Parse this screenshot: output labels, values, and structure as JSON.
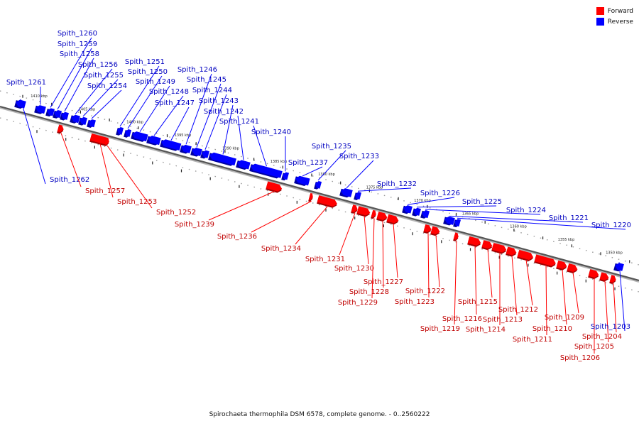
{
  "legend": {
    "forward": {
      "label": "Forward",
      "color": "#ff0000"
    },
    "reverse": {
      "label": "Reverse",
      "color": "#0000ff"
    }
  },
  "caption": "Spirochaeta thermophila DSM 6578, complete genome. - 0..2560222",
  "scale": {
    "ticks": [
      {
        "label": "1410 kbp",
        "pos": 1410
      },
      {
        "label": "1405 kbp",
        "pos": 1405
      },
      {
        "label": "1400 kbp",
        "pos": 1400
      },
      {
        "label": "1395 kbp",
        "pos": 1395
      },
      {
        "label": "1390 kbp",
        "pos": 1390
      },
      {
        "label": "1385 kbp",
        "pos": 1385
      },
      {
        "label": "1380 kbp",
        "pos": 1380
      },
      {
        "label": "1375 kbp",
        "pos": 1375
      },
      {
        "label": "1370 kbp",
        "pos": 1370
      },
      {
        "label": "1365 kbp",
        "pos": 1365
      },
      {
        "label": "1360 kbp",
        "pos": 1360
      },
      {
        "label": "1355 kbp",
        "pos": 1355
      },
      {
        "label": "1350 kbp",
        "pos": 1350
      }
    ]
  },
  "genes": [
    {
      "name": "Spith_1262",
      "strand": "reverse"
    },
    {
      "name": "Spith_1261",
      "strand": "reverse"
    },
    {
      "name": "Spith_1260",
      "strand": "reverse"
    },
    {
      "name": "Spith_1259",
      "strand": "reverse"
    },
    {
      "name": "Spith_1258",
      "strand": "reverse"
    },
    {
      "name": "Spith_1257",
      "strand": "forward"
    },
    {
      "name": "Spith_1256",
      "strand": "reverse"
    },
    {
      "name": "Spith_1255",
      "strand": "reverse"
    },
    {
      "name": "Spith_1254",
      "strand": "reverse"
    },
    {
      "name": "Spith_1253",
      "strand": "forward"
    },
    {
      "name": "Spith_1252",
      "strand": "forward"
    },
    {
      "name": "Spith_1251",
      "strand": "reverse"
    },
    {
      "name": "Spith_1250",
      "strand": "reverse"
    },
    {
      "name": "Spith_1249",
      "strand": "reverse"
    },
    {
      "name": "Spith_1248",
      "strand": "reverse"
    },
    {
      "name": "Spith_1247",
      "strand": "reverse"
    },
    {
      "name": "Spith_1246",
      "strand": "reverse"
    },
    {
      "name": "Spith_1245",
      "strand": "reverse"
    },
    {
      "name": "Spith_1244",
      "strand": "reverse"
    },
    {
      "name": "Spith_1243",
      "strand": "reverse"
    },
    {
      "name": "Spith_1242",
      "strand": "reverse"
    },
    {
      "name": "Spith_1241",
      "strand": "reverse"
    },
    {
      "name": "Spith_1240",
      "strand": "reverse"
    },
    {
      "name": "Spith_1239",
      "strand": "forward"
    },
    {
      "name": "Spith_1237",
      "strand": "reverse"
    },
    {
      "name": "Spith_1236",
      "strand": "forward"
    },
    {
      "name": "Spith_1235",
      "strand": "reverse"
    },
    {
      "name": "Spith_1234",
      "strand": "forward"
    },
    {
      "name": "Spith_1233",
      "strand": "reverse"
    },
    {
      "name": "Spith_1232",
      "strand": "reverse"
    },
    {
      "name": "Spith_1231",
      "strand": "forward"
    },
    {
      "name": "Spith_1230",
      "strand": "forward"
    },
    {
      "name": "Spith_1229",
      "strand": "forward"
    },
    {
      "name": "Spith_1228",
      "strand": "forward"
    },
    {
      "name": "Spith_1227",
      "strand": "forward"
    },
    {
      "name": "Spith_1226",
      "strand": "reverse"
    },
    {
      "name": "Spith_1225",
      "strand": "reverse"
    },
    {
      "name": "Spith_1224",
      "strand": "reverse"
    },
    {
      "name": "Spith_1223",
      "strand": "forward"
    },
    {
      "name": "Spith_1222",
      "strand": "forward"
    },
    {
      "name": "Spith_1221",
      "strand": "reverse"
    },
    {
      "name": "Spith_1220",
      "strand": "reverse"
    },
    {
      "name": "Spith_1219",
      "strand": "forward"
    },
    {
      "name": "Spith_1216",
      "strand": "forward"
    },
    {
      "name": "Spith_1215",
      "strand": "forward"
    },
    {
      "name": "Spith_1214",
      "strand": "forward"
    },
    {
      "name": "Spith_1213",
      "strand": "forward"
    },
    {
      "name": "Spith_1212",
      "strand": "forward"
    },
    {
      "name": "Spith_1211",
      "strand": "forward"
    },
    {
      "name": "Spith_1210",
      "strand": "forward"
    },
    {
      "name": "Spith_1209",
      "strand": "forward"
    },
    {
      "name": "Spith_1206",
      "strand": "forward"
    },
    {
      "name": "Spith_1205",
      "strand": "forward"
    },
    {
      "name": "Spith_1204",
      "strand": "forward"
    },
    {
      "name": "Spith_1203",
      "strand": "reverse"
    }
  ]
}
